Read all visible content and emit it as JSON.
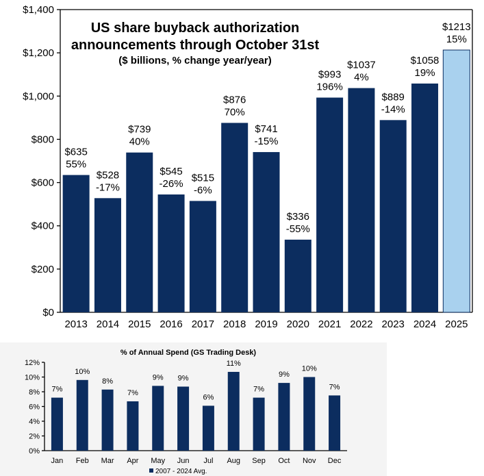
{
  "colors": {
    "bar": "#0c2d5f",
    "highlight_bar": "#a9d1ee",
    "highlight_stroke": "#0c2d5f",
    "background": "#ffffff",
    "small_panel_background": "#f4f4f4"
  },
  "chart_data": [
    {
      "type": "bar",
      "title": "US share buyback authorization announcements through October 31st",
      "title_line1": "US share buyback authorization",
      "title_line2": "announcements through October 31st",
      "subtitle": "($ billions, % change year/year)",
      "xlabel": "",
      "ylabel": "",
      "ylim": [
        0,
        1400
      ],
      "yticks": [
        0,
        200,
        400,
        600,
        800,
        1000,
        1200,
        1400
      ],
      "ytick_labels": [
        "$0",
        "$200",
        "$400",
        "$600",
        "$800",
        "$1,000",
        "$1,200",
        "$1,400"
      ],
      "categories": [
        "2013",
        "2014",
        "2015",
        "2016",
        "2017",
        "2018",
        "2019",
        "2020",
        "2021",
        "2022",
        "2023",
        "2024",
        "2025"
      ],
      "values": [
        635,
        528,
        739,
        545,
        515,
        876,
        741,
        336,
        993,
        1037,
        889,
        1058,
        1213
      ],
      "value_labels": [
        "$635",
        "$528",
        "$739",
        "$545",
        "$515",
        "$876",
        "$741",
        "$336",
        "$993",
        "$1037",
        "$889",
        "$1058",
        "$1213"
      ],
      "pct_labels": [
        "55%",
        "-17%",
        "40%",
        "-26%",
        "-6%",
        "70%",
        "-15%",
        "-55%",
        "196%",
        "4%",
        "-14%",
        "19%",
        "15%"
      ],
      "highlight_index": 12,
      "grid": false
    },
    {
      "type": "bar",
      "title": "% of Annual Spend (GS Trading Desk)",
      "xlabel": "",
      "ylabel": "",
      "ylim": [
        0,
        12
      ],
      "yticks": [
        0,
        2,
        4,
        6,
        8,
        10,
        12
      ],
      "ytick_labels": [
        "0%",
        "2%",
        "4%",
        "6%",
        "8%",
        "10%",
        "12%"
      ],
      "categories": [
        "Jan",
        "Feb",
        "Mar",
        "Apr",
        "May",
        "Jun",
        "Jul",
        "Aug",
        "Sep",
        "Oct",
        "Nov",
        "Dec"
      ],
      "values": [
        7.2,
        9.6,
        8.3,
        6.7,
        8.8,
        8.7,
        6.1,
        10.7,
        7.2,
        9.2,
        10.0,
        7.5
      ],
      "value_labels": [
        "7%",
        "10%",
        "8%",
        "7%",
        "9%",
        "9%",
        "6%",
        "11%",
        "7%",
        "9%",
        "10%",
        "7%"
      ],
      "legend": "2007 - 2024 Avg.",
      "legend_position": "bottom",
      "grid": false
    }
  ]
}
